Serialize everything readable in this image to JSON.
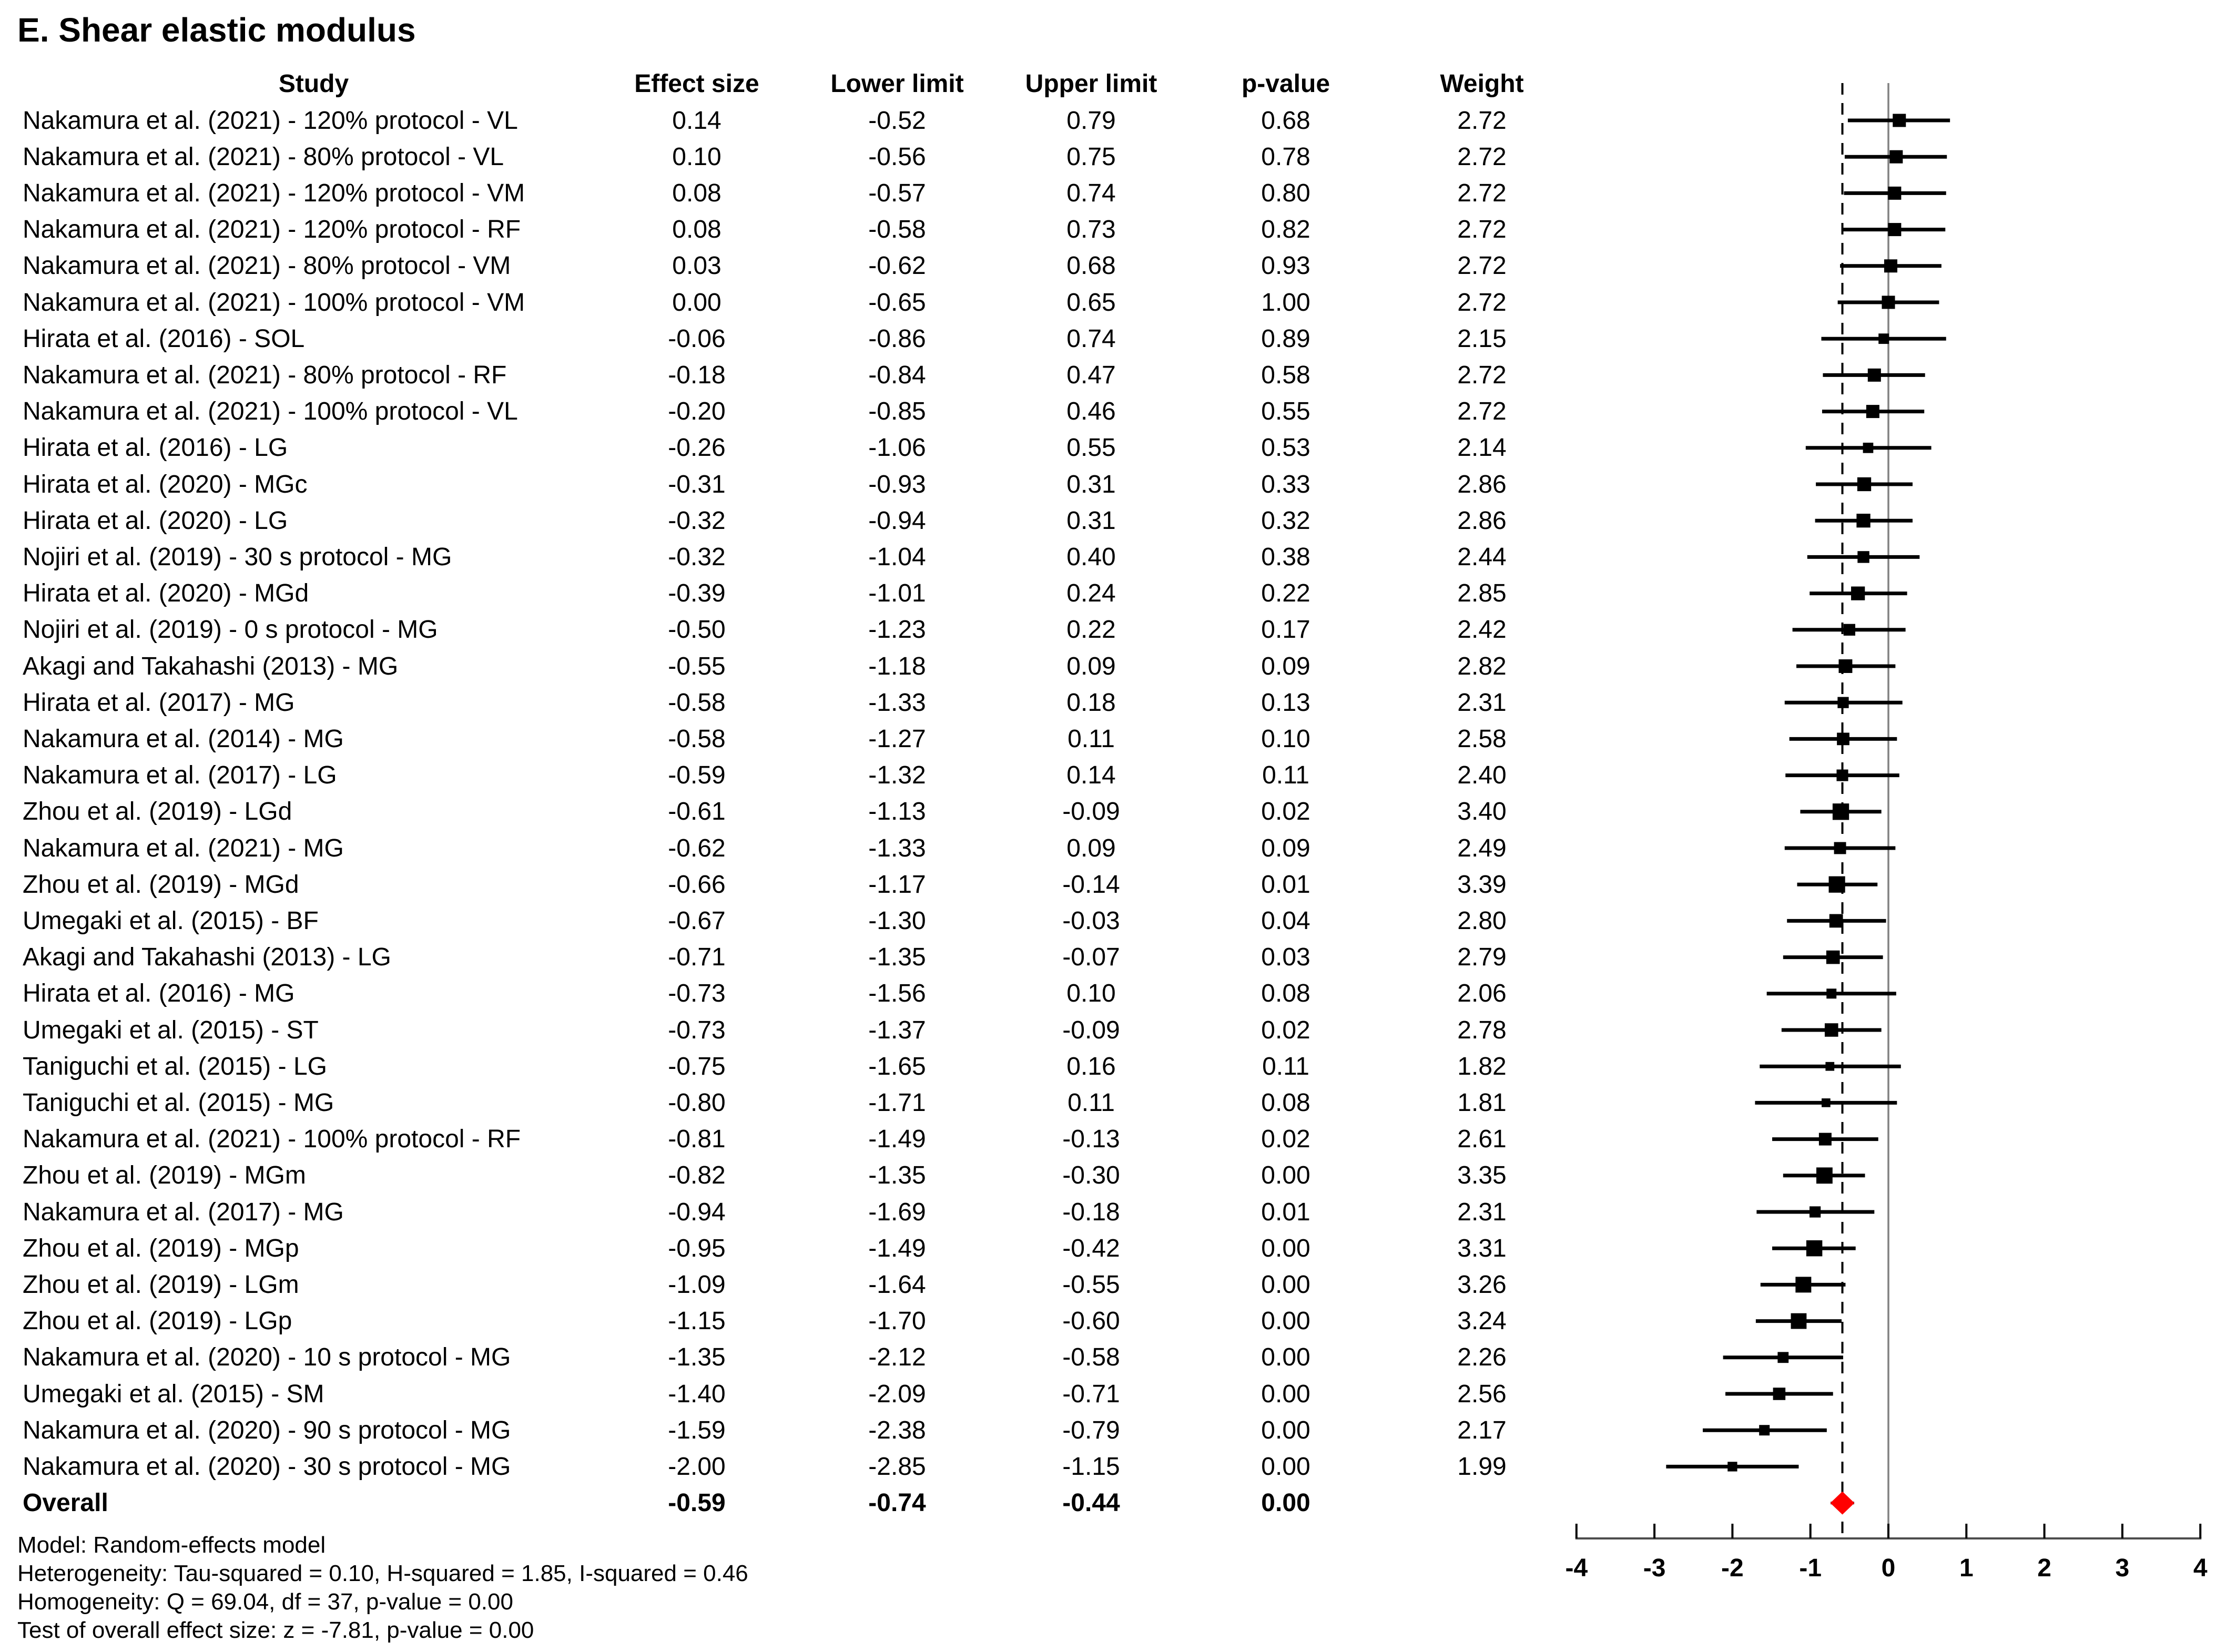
{
  "chart_data": {
    "type": "forest",
    "title": "E. Shear elastic modulus",
    "headers": {
      "study": "Study",
      "effect": "Effect size",
      "lower": "Lower limit",
      "upper": "Upper limit",
      "p": "p-value",
      "weight": "Weight"
    },
    "studies": [
      {
        "label": "Nakamura et al. (2021) - 120% protocol - VL",
        "effect": 0.14,
        "lower": -0.52,
        "upper": 0.79,
        "p": 0.68,
        "weight": 2.72
      },
      {
        "label": "Nakamura et al. (2021) - 80% protocol - VL",
        "effect": 0.1,
        "lower": -0.56,
        "upper": 0.75,
        "p": 0.78,
        "weight": 2.72
      },
      {
        "label": "Nakamura et al. (2021) - 120% protocol - VM",
        "effect": 0.08,
        "lower": -0.57,
        "upper": 0.74,
        "p": 0.8,
        "weight": 2.72
      },
      {
        "label": "Nakamura et al. (2021) - 120% protocol - RF",
        "effect": 0.08,
        "lower": -0.58,
        "upper": 0.73,
        "p": 0.82,
        "weight": 2.72
      },
      {
        "label": "Nakamura et al. (2021) - 80% protocol - VM",
        "effect": 0.03,
        "lower": -0.62,
        "upper": 0.68,
        "p": 0.93,
        "weight": 2.72
      },
      {
        "label": "Nakamura et al. (2021) - 100% protocol - VM",
        "effect": 0.0,
        "lower": -0.65,
        "upper": 0.65,
        "p": 1.0,
        "weight": 2.72
      },
      {
        "label": "Hirata et al. (2016) - SOL",
        "effect": -0.06,
        "lower": -0.86,
        "upper": 0.74,
        "p": 0.89,
        "weight": 2.15
      },
      {
        "label": "Nakamura et al. (2021) - 80% protocol - RF",
        "effect": -0.18,
        "lower": -0.84,
        "upper": 0.47,
        "p": 0.58,
        "weight": 2.72
      },
      {
        "label": "Nakamura et al. (2021) - 100% protocol - VL",
        "effect": -0.2,
        "lower": -0.85,
        "upper": 0.46,
        "p": 0.55,
        "weight": 2.72
      },
      {
        "label": "Hirata et al. (2016) - LG",
        "effect": -0.26,
        "lower": -1.06,
        "upper": 0.55,
        "p": 0.53,
        "weight": 2.14
      },
      {
        "label": "Hirata et al. (2020) - MGc",
        "effect": -0.31,
        "lower": -0.93,
        "upper": 0.31,
        "p": 0.33,
        "weight": 2.86
      },
      {
        "label": "Hirata et al. (2020) - LG",
        "effect": -0.32,
        "lower": -0.94,
        "upper": 0.31,
        "p": 0.32,
        "weight": 2.86
      },
      {
        "label": "Nojiri et al. (2019) - 30 s protocol - MG",
        "effect": -0.32,
        "lower": -1.04,
        "upper": 0.4,
        "p": 0.38,
        "weight": 2.44
      },
      {
        "label": "Hirata et al. (2020) - MGd",
        "effect": -0.39,
        "lower": -1.01,
        "upper": 0.24,
        "p": 0.22,
        "weight": 2.85
      },
      {
        "label": "Nojiri et al. (2019) - 0 s protocol - MG",
        "effect": -0.5,
        "lower": -1.23,
        "upper": 0.22,
        "p": 0.17,
        "weight": 2.42
      },
      {
        "label": "Akagi and Takahashi (2013) - MG",
        "effect": -0.55,
        "lower": -1.18,
        "upper": 0.09,
        "p": 0.09,
        "weight": 2.82
      },
      {
        "label": "Hirata et al. (2017) - MG",
        "effect": -0.58,
        "lower": -1.33,
        "upper": 0.18,
        "p": 0.13,
        "weight": 2.31
      },
      {
        "label": "Nakamura et al. (2014) - MG",
        "effect": -0.58,
        "lower": -1.27,
        "upper": 0.11,
        "p": 0.1,
        "weight": 2.58
      },
      {
        "label": "Nakamura et al. (2017) - LG",
        "effect": -0.59,
        "lower": -1.32,
        "upper": 0.14,
        "p": 0.11,
        "weight": 2.4
      },
      {
        "label": "Zhou et al. (2019) - LGd",
        "effect": -0.61,
        "lower": -1.13,
        "upper": -0.09,
        "p": 0.02,
        "weight": 3.4
      },
      {
        "label": "Nakamura et al. (2021) - MG",
        "effect": -0.62,
        "lower": -1.33,
        "upper": 0.09,
        "p": 0.09,
        "weight": 2.49
      },
      {
        "label": "Zhou et al. (2019) - MGd",
        "effect": -0.66,
        "lower": -1.17,
        "upper": -0.14,
        "p": 0.01,
        "weight": 3.39
      },
      {
        "label": "Umegaki et al. (2015) - BF",
        "effect": -0.67,
        "lower": -1.3,
        "upper": -0.03,
        "p": 0.04,
        "weight": 2.8
      },
      {
        "label": "Akagi and Takahashi (2013) - LG",
        "effect": -0.71,
        "lower": -1.35,
        "upper": -0.07,
        "p": 0.03,
        "weight": 2.79
      },
      {
        "label": "Hirata et al. (2016) - MG",
        "effect": -0.73,
        "lower": -1.56,
        "upper": 0.1,
        "p": 0.08,
        "weight": 2.06
      },
      {
        "label": "Umegaki et al. (2015) - ST",
        "effect": -0.73,
        "lower": -1.37,
        "upper": -0.09,
        "p": 0.02,
        "weight": 2.78
      },
      {
        "label": "Taniguchi et al. (2015) - LG",
        "effect": -0.75,
        "lower": -1.65,
        "upper": 0.16,
        "p": 0.11,
        "weight": 1.82
      },
      {
        "label": "Taniguchi et al. (2015) - MG",
        "effect": -0.8,
        "lower": -1.71,
        "upper": 0.11,
        "p": 0.08,
        "weight": 1.81
      },
      {
        "label": "Nakamura et al. (2021) - 100% protocol - RF",
        "effect": -0.81,
        "lower": -1.49,
        "upper": -0.13,
        "p": 0.02,
        "weight": 2.61
      },
      {
        "label": "Zhou et al. (2019) - MGm",
        "effect": -0.82,
        "lower": -1.35,
        "upper": -0.3,
        "p": 0.0,
        "weight": 3.35
      },
      {
        "label": "Nakamura et al. (2017) - MG",
        "effect": -0.94,
        "lower": -1.69,
        "upper": -0.18,
        "p": 0.01,
        "weight": 2.31
      },
      {
        "label": "Zhou et al. (2019) - MGp",
        "effect": -0.95,
        "lower": -1.49,
        "upper": -0.42,
        "p": 0.0,
        "weight": 3.31
      },
      {
        "label": "Zhou et al. (2019) - LGm",
        "effect": -1.09,
        "lower": -1.64,
        "upper": -0.55,
        "p": 0.0,
        "weight": 3.26
      },
      {
        "label": "Zhou et al. (2019) - LGp",
        "effect": -1.15,
        "lower": -1.7,
        "upper": -0.6,
        "p": 0.0,
        "weight": 3.24
      },
      {
        "label": "Nakamura et al. (2020) - 10 s protocol - MG",
        "effect": -1.35,
        "lower": -2.12,
        "upper": -0.58,
        "p": 0.0,
        "weight": 2.26
      },
      {
        "label": "Umegaki et al. (2015) - SM",
        "effect": -1.4,
        "lower": -2.09,
        "upper": -0.71,
        "p": 0.0,
        "weight": 2.56
      },
      {
        "label": "Nakamura et al. (2020) - 90 s protocol - MG",
        "effect": -1.59,
        "lower": -2.38,
        "upper": -0.79,
        "p": 0.0,
        "weight": 2.17
      },
      {
        "label": "Nakamura et al. (2020) - 30 s protocol - MG",
        "effect": -2.0,
        "lower": -2.85,
        "upper": -1.15,
        "p": 0.0,
        "weight": 1.99
      }
    ],
    "overall": {
      "label": "Overall",
      "effect": -0.59,
      "lower": -0.74,
      "upper": -0.44,
      "p": 0.0
    },
    "axis": {
      "min": -4,
      "max": 4,
      "tick_labels": [
        "-4",
        "-3",
        "-2",
        "-1",
        "0",
        "1",
        "2",
        "3",
        "4"
      ],
      "zero_line_at": 0,
      "dashed_line_at": -0.59
    },
    "legend_position": "none",
    "grid": false,
    "notes": [
      "Model: Random-effects model",
      "Heterogeneity: Tau-squared = 0.10, H-squared = 1.85, I-squared = 0.46",
      "Homogeneity: Q = 69.04, df = 37, p-value = 0.00",
      "Test of overall effect size: z = -7.81, p-value = 0.00"
    ],
    "colors": {
      "marker": "#000000",
      "ci_line": "#000000",
      "overall_diamond": "#ff0000",
      "zero_line": "#808080",
      "dashed_line": "#000000",
      "axis_line": "#4d4d4d",
      "text": "#000000"
    }
  }
}
